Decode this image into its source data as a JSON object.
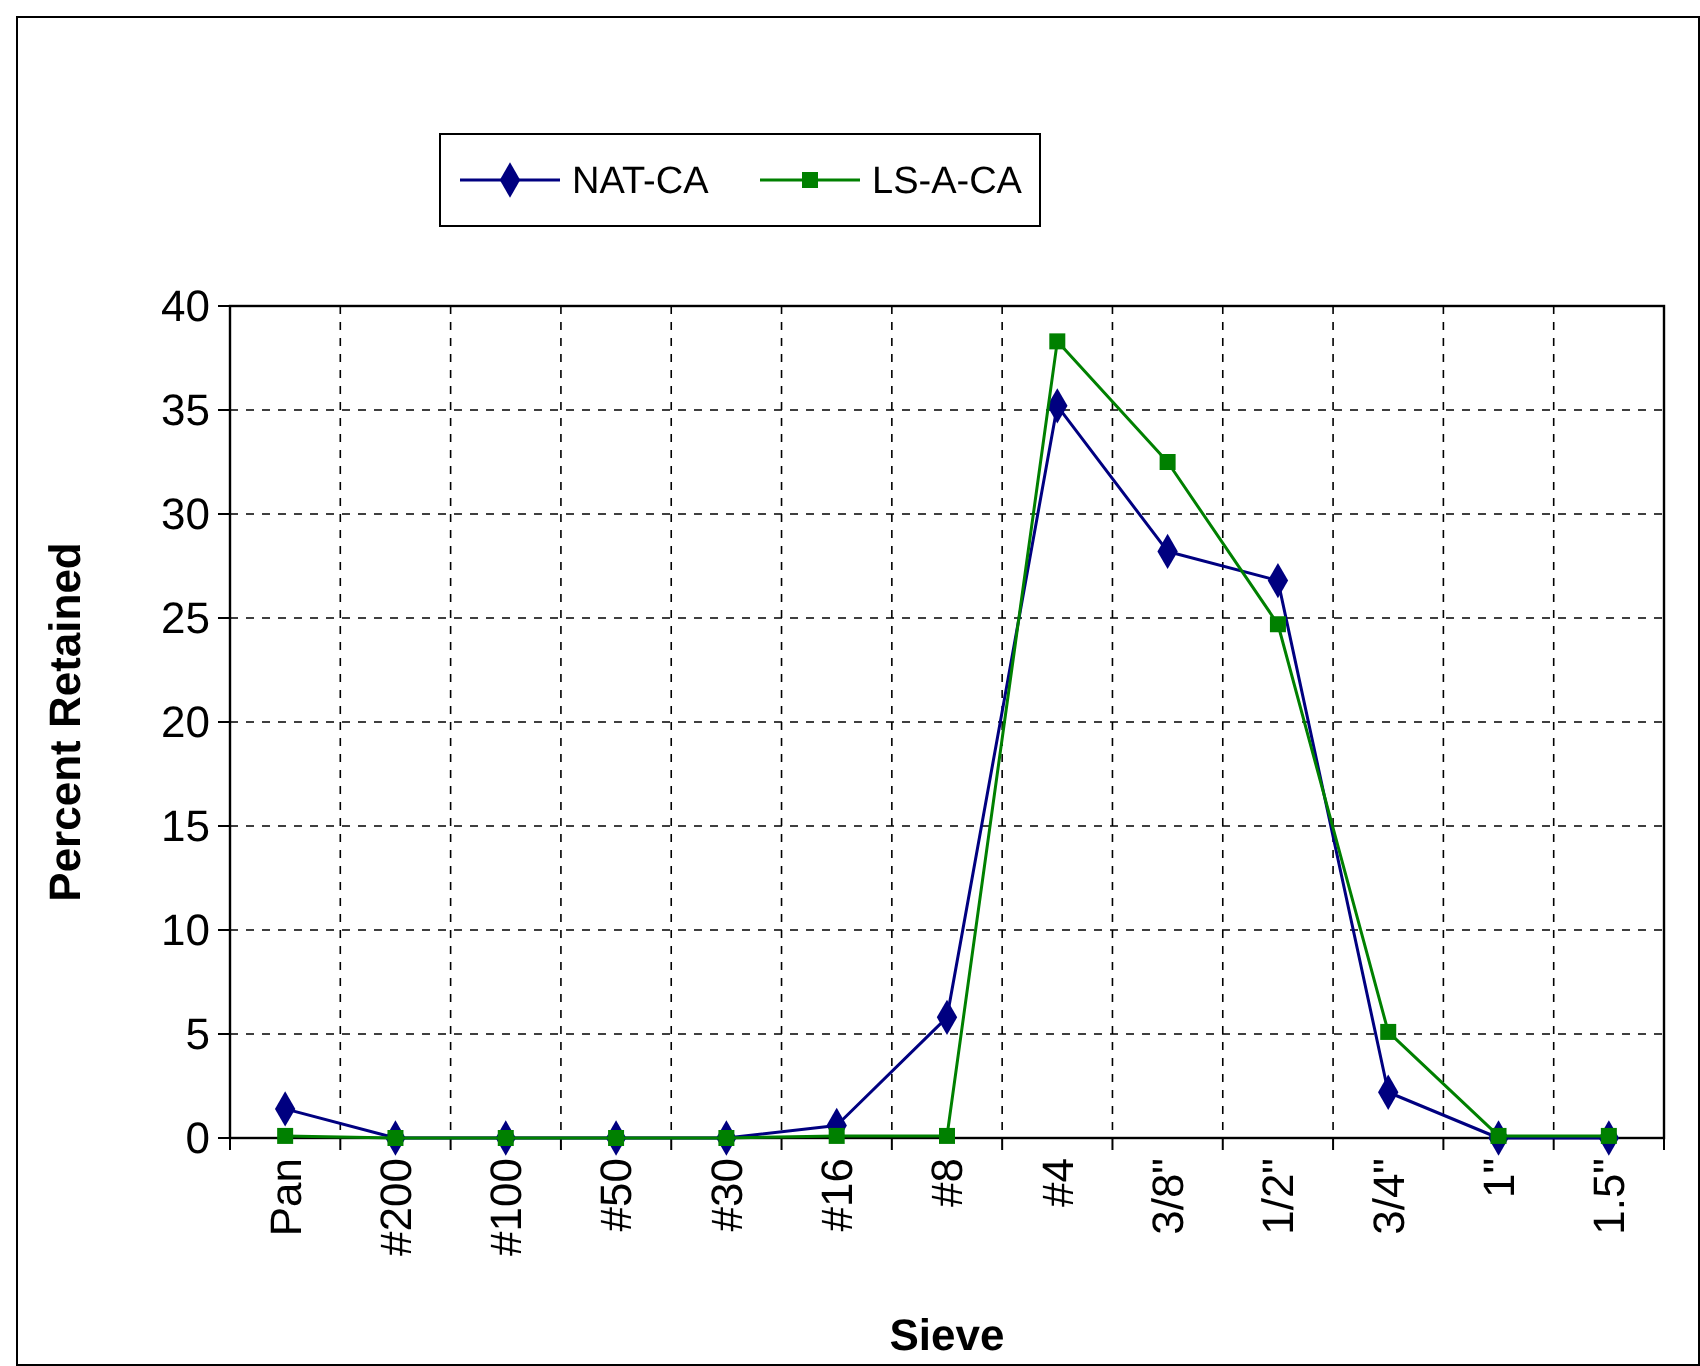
{
  "chart_data": {
    "type": "line",
    "xlabel": "Sieve",
    "ylabel": "Percent Retained",
    "categories": [
      "Pan",
      "#200",
      "#100",
      "#50",
      "#30",
      "#16",
      "#8",
      "#4",
      "3/8\"",
      "1/2\"",
      "3/4\"",
      "1\"",
      "1.5\""
    ],
    "series": [
      {
        "name": "NAT-CA",
        "color": "#000080",
        "marker": "diamond",
        "values": [
          1.4,
          0,
          0,
          0,
          0,
          0.6,
          5.8,
          35.2,
          28.2,
          26.8,
          2.2,
          0,
          0
        ]
      },
      {
        "name": "LS-A-CA",
        "color": "#008000",
        "marker": "square",
        "values": [
          0.1,
          0,
          0,
          0,
          0,
          0.1,
          0.1,
          38.3,
          32.5,
          24.7,
          5.1,
          0.1,
          0.1
        ]
      }
    ],
    "ylim": [
      0,
      40
    ],
    "yticks": [
      0,
      5,
      10,
      15,
      20,
      25,
      30,
      35,
      40
    ],
    "grid": true,
    "legend": "top"
  }
}
